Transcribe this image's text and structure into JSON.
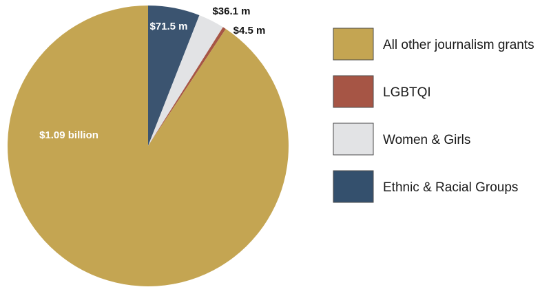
{
  "chart_data": {
    "type": "pie",
    "start_angle_deg": 0,
    "direction": "clockwise",
    "slices": [
      {
        "name": "Ethnic & Racial Groups",
        "value": 71.5,
        "label": "$71.5 m",
        "color": "#3b5470",
        "label_color": "#ffffff",
        "label_position": "inside"
      },
      {
        "name": "Women & Girls",
        "value": 36.1,
        "label": "$36.1 m",
        "color": "#e2e3e5",
        "label_color": "#111111",
        "label_position": "outside"
      },
      {
        "name": "LGBTQI",
        "value": 4.5,
        "label": "$4.5 m",
        "color": "#a65545",
        "label_color": "#111111",
        "label_position": "outside"
      },
      {
        "name": "All other journalism grants",
        "value": 1090,
        "label": "$1.09 billion",
        "color": "#c4a552",
        "label_color": "#ffffff",
        "label_position": "inside"
      }
    ],
    "legend": {
      "placement": "right",
      "items": [
        {
          "label": "All other journalism grants",
          "color": "#c4a552"
        },
        {
          "label": "LGBTQI",
          "color": "#a65545"
        },
        {
          "label": "Women & Girls",
          "color": "#e2e3e5"
        },
        {
          "label": "Ethnic & Racial Groups",
          "color": "#34506d"
        }
      ]
    }
  }
}
